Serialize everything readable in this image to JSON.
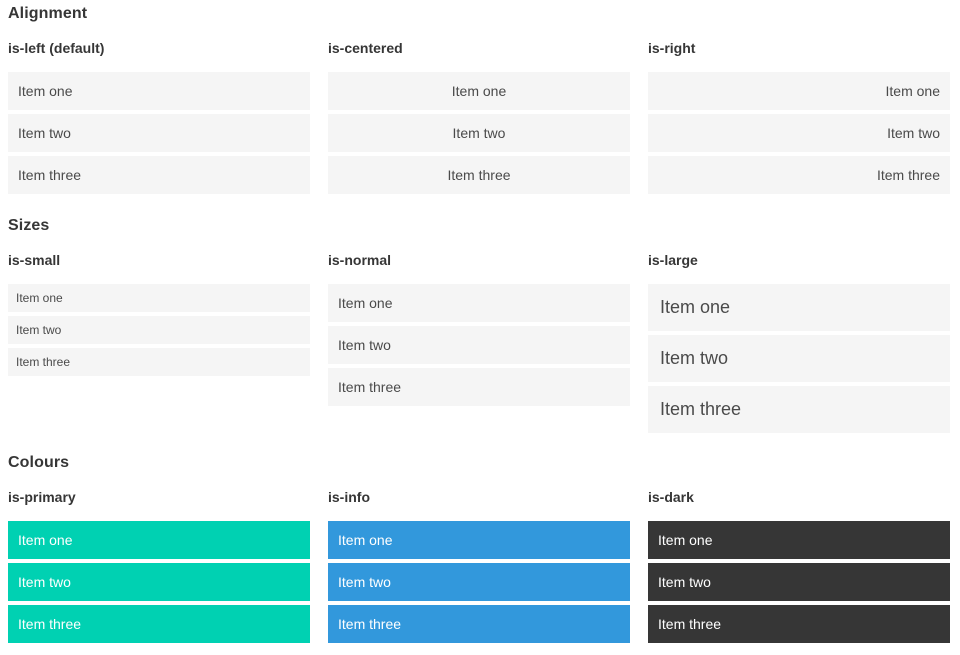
{
  "colors": {
    "primary": "#00d1b2",
    "info": "#3298dc",
    "dark": "#363636",
    "item_background": "#f5f5f5",
    "item_text": "#4a4a4a",
    "heading_text": "#363636"
  },
  "sections": [
    {
      "title": "Alignment",
      "columns": [
        {
          "label": "is-left (default)",
          "items": [
            "Item one",
            "Item two",
            "Item three"
          ]
        },
        {
          "label": "is-centered",
          "items": [
            "Item one",
            "Item two",
            "Item three"
          ]
        },
        {
          "label": "is-right",
          "items": [
            "Item one",
            "Item two",
            "Item three"
          ]
        }
      ]
    },
    {
      "title": "Sizes",
      "columns": [
        {
          "label": "is-small",
          "items": [
            "Item one",
            "Item two",
            "Item three"
          ]
        },
        {
          "label": "is-normal",
          "items": [
            "Item one",
            "Item two",
            "Item three"
          ]
        },
        {
          "label": "is-large",
          "items": [
            "Item one",
            "Item two",
            "Item three"
          ]
        }
      ]
    },
    {
      "title": "Colours",
      "columns": [
        {
          "label": "is-primary",
          "items": [
            "Item one",
            "Item two",
            "Item three"
          ]
        },
        {
          "label": "is-info",
          "items": [
            "Item one",
            "Item two",
            "Item three"
          ]
        },
        {
          "label": "is-dark",
          "items": [
            "Item one",
            "Item two",
            "Item three"
          ]
        }
      ]
    }
  ]
}
